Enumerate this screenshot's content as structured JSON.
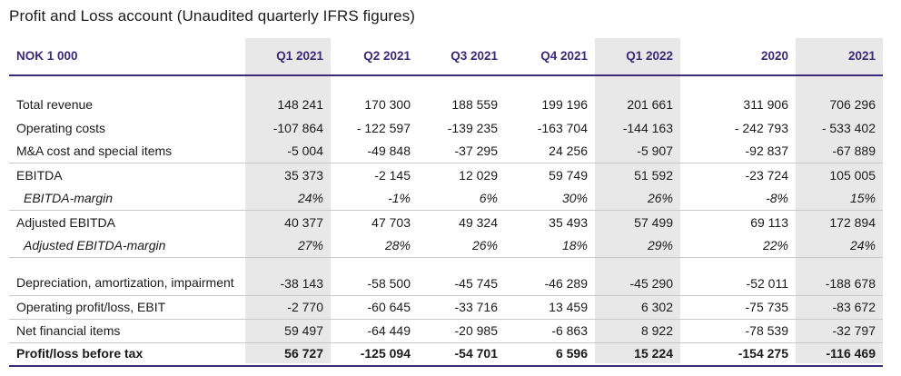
{
  "title": "Profit and Loss account (Unaudited quarterly IFRS figures)",
  "header": [
    "NOK 1 000",
    "Q1 2021",
    "Q2 2021",
    "Q3 2021",
    "Q4 2021",
    "Q1 2022",
    "2020",
    "2021"
  ],
  "rows": [
    {
      "label": "Total revenue",
      "values": [
        "148 241",
        "170 300",
        "188 559",
        "199 196",
        "201 661",
        "311 906",
        "706 296"
      ]
    },
    {
      "label": "Operating costs",
      "values": [
        "-107 864",
        "- 122 597",
        "-139 235",
        "-163 704",
        "-144 163",
        "- 242 793",
        "- 533 402"
      ]
    },
    {
      "label": "M&A cost and special items",
      "values": [
        "-5 004",
        "-49 848",
        "-37 295",
        "24 256",
        "-5 907",
        "-92 837",
        "-67 889"
      ]
    },
    {
      "label": "EBITDA",
      "values": [
        "35 373",
        "-2 145",
        "12 029",
        "59 749",
        "51 592",
        "-23 724",
        "105 005"
      ]
    },
    {
      "label": "EBITDA-margin",
      "values": [
        "24%",
        "-1%",
        "6%",
        "30%",
        "26%",
        "-8%",
        "15%"
      ]
    },
    {
      "label": "Adjusted EBITDA",
      "values": [
        "40 377",
        "47 703",
        "49 324",
        "35 493",
        "57 499",
        "69 113",
        "172 894"
      ]
    },
    {
      "label": "Adjusted EBITDA-margin",
      "values": [
        "27%",
        "28%",
        "26%",
        "18%",
        "29%",
        "22%",
        "24%"
      ]
    },
    {
      "label": "Depreciation, amortization, impairment",
      "values": [
        "-38 143",
        "-58 500",
        "-45 745",
        "-46 289",
        "-45 290",
        "-52 011",
        "-188 678"
      ]
    },
    {
      "label": "Operating profit/loss, EBIT",
      "values": [
        "-2 770",
        "-60 645",
        "-33 716",
        "13 459",
        "6 302",
        "-75 735",
        "-83 672"
      ]
    },
    {
      "label": "Net financial items",
      "values": [
        "59 497",
        "-64 449",
        "-20 985",
        "-6 863",
        "8 922",
        "-78 539",
        "-32 797"
      ]
    },
    {
      "label": "Profit/loss before tax",
      "values": [
        "56 727",
        "-125 094",
        "-54 701",
        "6 596",
        "15 224",
        "-154 275",
        "-116 469"
      ]
    }
  ]
}
